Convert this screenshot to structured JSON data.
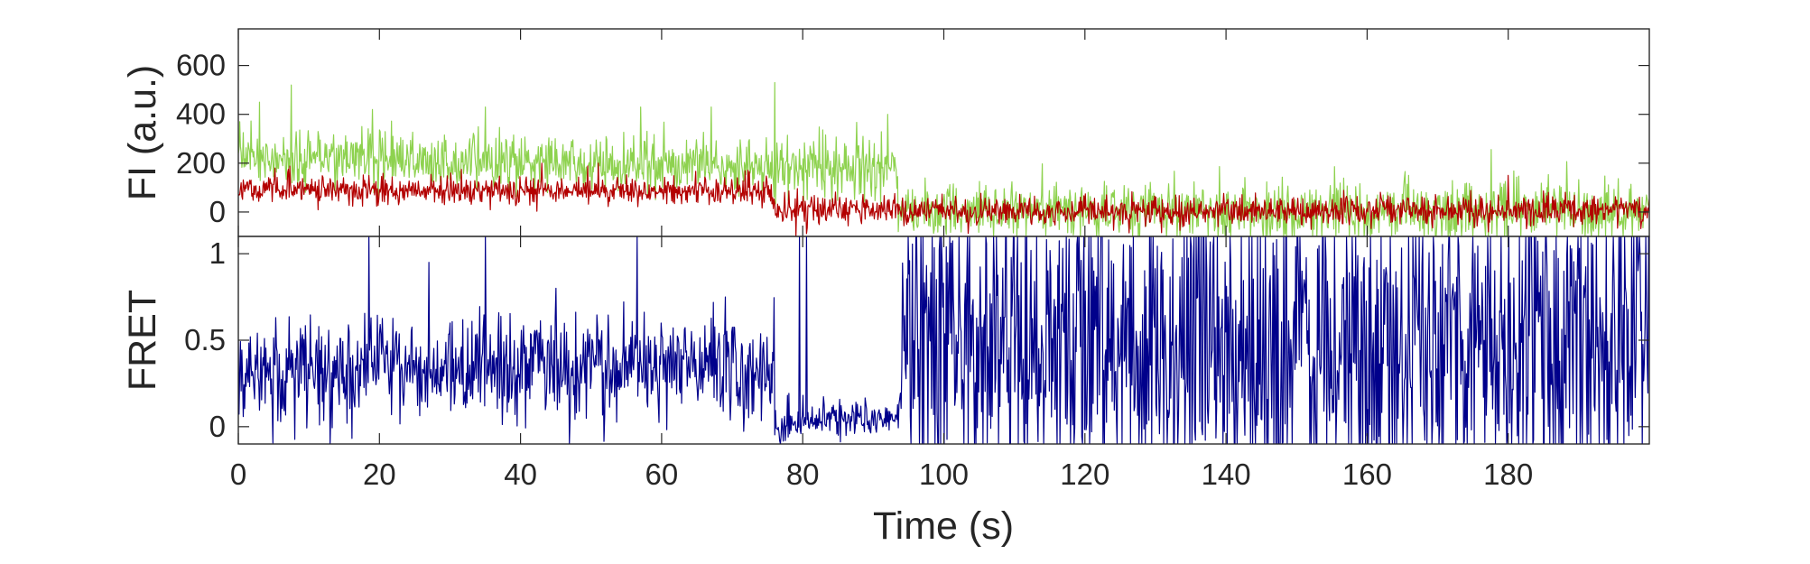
{
  "chart_data": [
    {
      "type": "line",
      "ylabel": "FI (a.u.)",
      "xlim": [
        0,
        200
      ],
      "ylim": [
        -100,
        750
      ],
      "yticks": [
        0,
        200,
        400,
        600
      ],
      "grid": false,
      "series": [
        {
          "color": "#8ed24f",
          "noise": 60,
          "segments": [
            {
              "x": [
                0,
                93.5
              ],
              "y": [
                230,
                180
              ]
            },
            {
              "x": [
                93.5,
                200
              ],
              "y": [
                10,
                5
              ]
            }
          ],
          "spikes": [
            [
              7.5,
              520
            ],
            [
              3,
              450
            ],
            [
              76,
              530
            ],
            [
              35,
              430
            ],
            [
              57,
              430
            ],
            [
              92,
              400
            ],
            [
              19,
              420
            ],
            [
              67,
              430
            ]
          ]
        },
        {
          "color": "#b30000",
          "noise": 30,
          "segments": [
            {
              "x": [
                0,
                76
              ],
              "y": [
                100,
                80
              ]
            },
            {
              "x": [
                76,
                94
              ],
              "y": [
                20,
                10
              ]
            },
            {
              "x": [
                94,
                200
              ],
              "y": [
                0,
                10
              ]
            }
          ],
          "spikes": [
            [
              43,
              200
            ],
            [
              51,
              200
            ],
            [
              180,
              150
            ],
            [
              79,
              -110
            ]
          ]
        }
      ]
    },
    {
      "type": "line",
      "xlabel": "Time (s)",
      "ylabel": "FRET",
      "xlim": [
        0,
        200
      ],
      "ylim": [
        -0.1,
        1.1
      ],
      "xticks": [
        0,
        20,
        40,
        60,
        80,
        100,
        120,
        140,
        160,
        180
      ],
      "yticks": [
        0,
        0.5,
        1
      ],
      "grid": false,
      "series": [
        {
          "color": "#00008b",
          "segments": [
            {
              "x": [
                0,
                76
              ],
              "y": [
                0.32,
                0.36
              ],
              "noise": 0.15
            },
            {
              "x": [
                76,
                94
              ],
              "y": [
                0.02,
                0.06
              ],
              "noise": 0.06
            },
            {
              "x": [
                94,
                200
              ],
              "y": [
                0.5,
                0.5
              ],
              "noise": 0.45
            }
          ],
          "spikes": [
            [
              18.5,
              1.1
            ],
            [
              35,
              1.1
            ],
            [
              56.5,
              1.1
            ],
            [
              79.5,
              1.1
            ],
            [
              80.5,
              1.1
            ],
            [
              13,
              -0.1
            ],
            [
              27,
              0.95
            ],
            [
              45,
              0.8
            ],
            [
              69,
              0.75
            ]
          ]
        }
      ]
    }
  ]
}
